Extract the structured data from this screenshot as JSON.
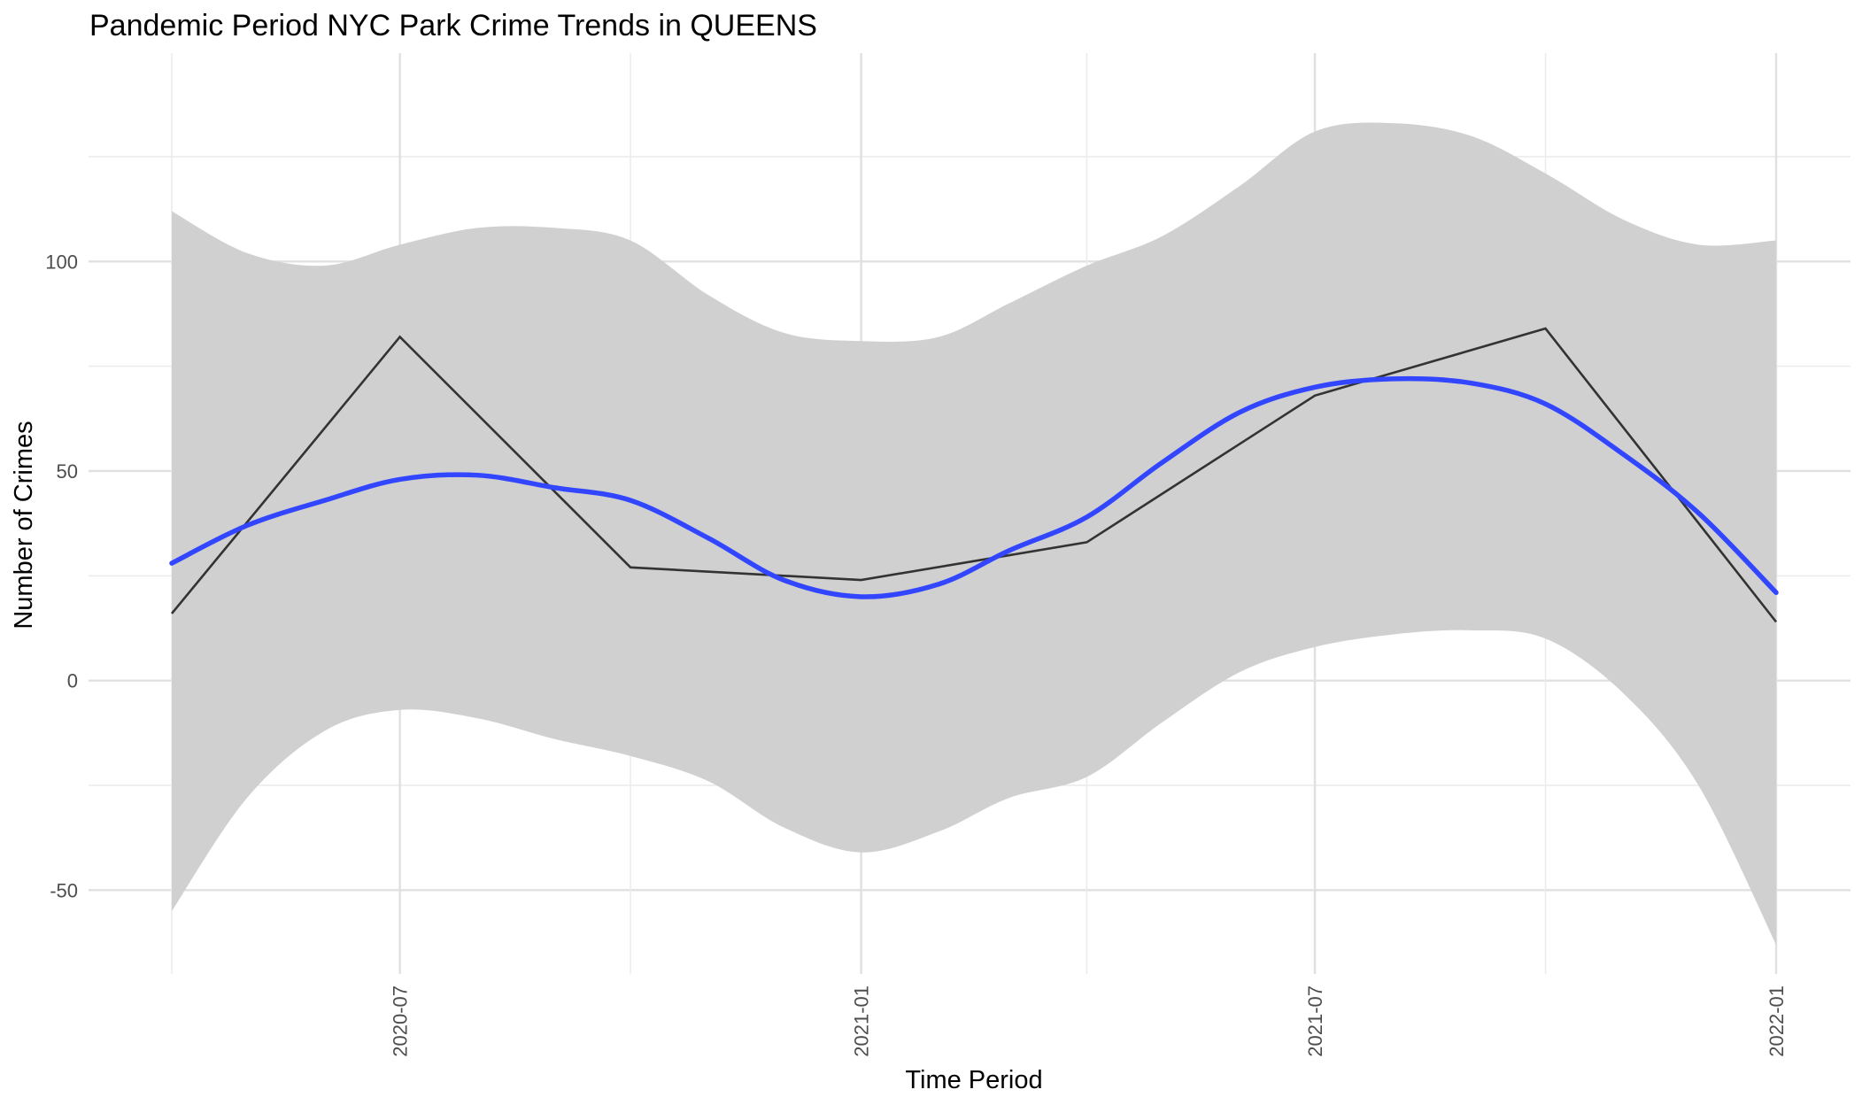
{
  "chart_data": {
    "type": "line",
    "title": "Pandemic Period NYC Park Crime Trends in QUEENS",
    "xlabel": "Time Period",
    "ylabel": "Number of Crimes",
    "xlim": [
      "2020-04-01",
      "2022-01-01"
    ],
    "ylim": [
      -70,
      135
    ],
    "x_ticks": [
      "2020-07",
      "2021-01",
      "2021-07",
      "2022-01"
    ],
    "y_ticks": [
      -50,
      0,
      50,
      100
    ],
    "grid": true,
    "series": [
      {
        "kind": "observed",
        "color": "#333333",
        "points": [
          {
            "x": "2020-04-01",
            "y": 16
          },
          {
            "x": "2020-07-01",
            "y": 82
          },
          {
            "x": "2020-10-01",
            "y": 27
          },
          {
            "x": "2021-01-01",
            "y": 24
          },
          {
            "x": "2021-04-01",
            "y": 33
          },
          {
            "x": "2021-07-01",
            "y": 68
          },
          {
            "x": "2021-10-01",
            "y": 84
          },
          {
            "x": "2022-01-01",
            "y": 14
          }
        ]
      },
      {
        "kind": "smooth-fit",
        "color": "#3246ff",
        "band_color": "#d0d0d0",
        "points": [
          {
            "x": "2020-04-01",
            "y": 28,
            "lo": -55,
            "hi": 112
          },
          {
            "x": "2020-05-01",
            "y": 37,
            "lo": -28,
            "hi": 102
          },
          {
            "x": "2020-06-01",
            "y": 43,
            "lo": -12,
            "hi": 99
          },
          {
            "x": "2020-07-01",
            "y": 48,
            "lo": -7,
            "hi": 104
          },
          {
            "x": "2020-08-01",
            "y": 49,
            "lo": -9,
            "hi": 108
          },
          {
            "x": "2020-09-01",
            "y": 46,
            "lo": -14,
            "hi": 108
          },
          {
            "x": "2020-10-01",
            "y": 43,
            "lo": -18,
            "hi": 105
          },
          {
            "x": "2020-11-01",
            "y": 34,
            "lo": -24,
            "hi": 92
          },
          {
            "x": "2020-12-01",
            "y": 24,
            "lo": -35,
            "hi": 83
          },
          {
            "x": "2021-01-01",
            "y": 20,
            "lo": -41,
            "hi": 81
          },
          {
            "x": "2021-02-01",
            "y": 23,
            "lo": -36,
            "hi": 82
          },
          {
            "x": "2021-03-01",
            "y": 31,
            "lo": -28,
            "hi": 90
          },
          {
            "x": "2021-04-01",
            "y": 39,
            "lo": -23,
            "hi": 99
          },
          {
            "x": "2021-05-01",
            "y": 52,
            "lo": -10,
            "hi": 106
          },
          {
            "x": "2021-06-01",
            "y": 64,
            "lo": 2,
            "hi": 118
          },
          {
            "x": "2021-07-01",
            "y": 70,
            "lo": 8,
            "hi": 131
          },
          {
            "x": "2021-08-01",
            "y": 72,
            "lo": 11,
            "hi": 133
          },
          {
            "x": "2021-09-01",
            "y": 71,
            "lo": 12,
            "hi": 130
          },
          {
            "x": "2021-10-01",
            "y": 66,
            "lo": 10,
            "hi": 121
          },
          {
            "x": "2021-11-01",
            "y": 54,
            "lo": -3,
            "hi": 110
          },
          {
            "x": "2021-12-01",
            "y": 40,
            "lo": -25,
            "hi": 104
          },
          {
            "x": "2022-01-01",
            "y": 21,
            "lo": -63,
            "hi": 105
          }
        ]
      }
    ]
  }
}
